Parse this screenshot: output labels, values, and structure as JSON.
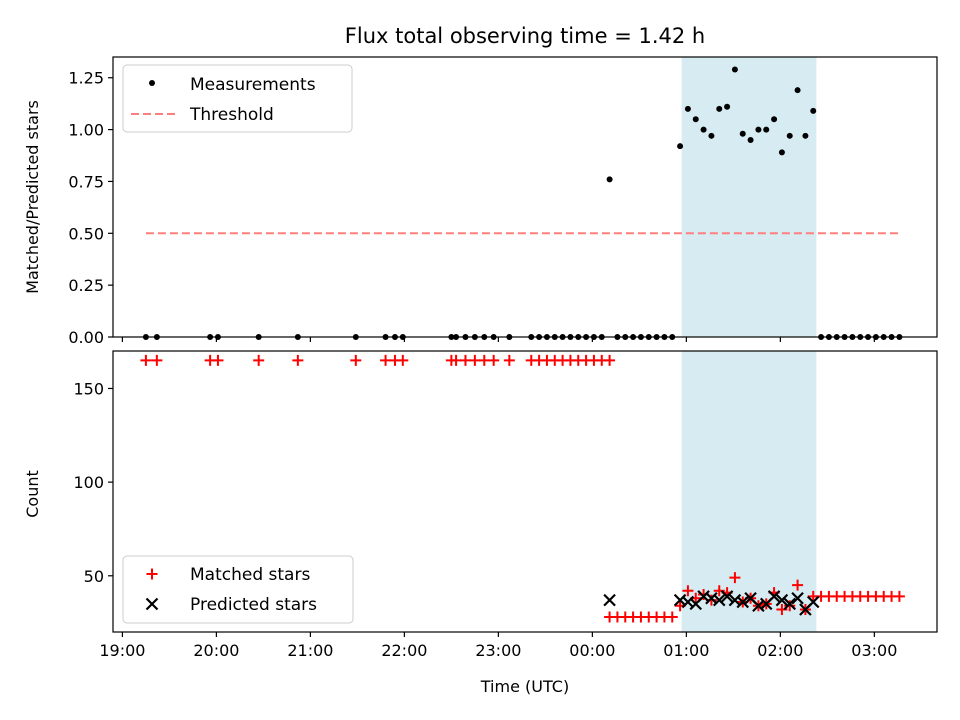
{
  "chart_data": [
    {
      "type": "scatter",
      "title": "Flux total observing time = 1.42 h",
      "xlabel": "",
      "ylabel": "Matched/Predicted stars",
      "xlim": [
        "18:54",
        "03:40"
      ],
      "ylim": [
        0,
        1.35
      ],
      "yticks": [
        "0.00",
        "0.25",
        "0.50",
        "0.75",
        "1.00",
        "1.25"
      ],
      "shaded_region": {
        "x_start": "00:57",
        "x_end": "02:23"
      },
      "legend": {
        "position": "top-left",
        "entries": [
          "Measurements",
          "Threshold"
        ]
      },
      "series": [
        {
          "name": "Measurements",
          "x": [
            "19:15",
            "19:22",
            "19:56",
            "20:01",
            "20:27",
            "20:52",
            "21:29",
            "21:48",
            "21:54",
            "21:59",
            "22:30",
            "22:33",
            "22:39",
            "22:45",
            "22:51",
            "22:57",
            "23:07",
            "23:21",
            "23:26",
            "23:31",
            "23:36",
            "23:41",
            "23:46",
            "23:51",
            "23:56",
            "00:01",
            "00:06",
            "00:11",
            "00:16",
            "00:21",
            "00:26",
            "00:31",
            "00:36",
            "00:41",
            "00:46",
            "00:51",
            "00:56",
            "01:01",
            "01:06",
            "01:11",
            "01:16",
            "01:21",
            "01:26",
            "01:31",
            "01:36",
            "01:41",
            "01:46",
            "01:51",
            "01:56",
            "02:01",
            "02:06",
            "02:11",
            "02:16",
            "02:21",
            "02:26",
            "02:31",
            "02:36",
            "02:41",
            "02:46",
            "02:51",
            "02:56",
            "03:01",
            "03:06",
            "03:11",
            "03:16"
          ],
          "y": [
            0,
            0,
            0,
            0,
            0,
            0,
            0,
            0,
            0,
            0,
            0,
            0,
            0,
            0,
            0,
            0,
            0,
            0,
            0,
            0,
            0,
            0,
            0,
            0,
            0,
            0,
            0,
            0.76,
            0,
            0,
            0,
            0,
            0,
            0,
            0,
            0,
            0.92,
            1.1,
            1.05,
            1.0,
            0.97,
            1.1,
            1.11,
            1.29,
            0.98,
            0.95,
            1.0,
            1.0,
            1.05,
            0.89,
            0.97,
            1.19,
            0.97,
            1.09,
            0,
            0,
            0,
            0,
            0,
            0,
            0,
            0,
            0,
            0,
            0
          ]
        },
        {
          "name": "Threshold",
          "x": [
            "19:15",
            "03:16"
          ],
          "y": [
            0.5,
            0.5
          ]
        }
      ]
    },
    {
      "type": "scatter",
      "title": "",
      "xlabel": "Time (UTC)",
      "ylabel": "Count",
      "xlim": [
        "18:54",
        "03:40"
      ],
      "ylim": [
        20,
        170
      ],
      "yticks": [
        "50",
        "100",
        "150"
      ],
      "xticks": [
        "19:00",
        "20:00",
        "21:00",
        "22:00",
        "23:00",
        "00:00",
        "01:00",
        "02:00",
        "03:00"
      ],
      "shaded_region": {
        "x_start": "00:57",
        "x_end": "02:23"
      },
      "legend": {
        "position": "bottom-left",
        "entries": [
          "Matched stars",
          "Predicted stars"
        ]
      },
      "series": [
        {
          "name": "Matched stars",
          "x": [
            "19:15",
            "19:22",
            "19:56",
            "20:01",
            "20:27",
            "20:52",
            "21:29",
            "21:48",
            "21:54",
            "21:59",
            "22:30",
            "22:33",
            "22:39",
            "22:45",
            "22:51",
            "22:57",
            "23:07",
            "23:21",
            "23:26",
            "23:31",
            "23:36",
            "23:41",
            "23:46",
            "23:51",
            "23:56",
            "00:01",
            "00:06",
            "00:11",
            "00:11",
            "00:16",
            "00:21",
            "00:26",
            "00:31",
            "00:36",
            "00:41",
            "00:46",
            "00:51",
            "00:56",
            "01:01",
            "01:06",
            "01:11",
            "01:16",
            "01:21",
            "01:26",
            "01:31",
            "01:36",
            "01:41",
            "01:46",
            "01:51",
            "01:56",
            "02:01",
            "02:06",
            "02:11",
            "02:16",
            "02:21",
            "02:26",
            "02:31",
            "02:36",
            "02:41",
            "02:46",
            "02:51",
            "02:56",
            "03:01",
            "03:06",
            "03:11",
            "03:16"
          ],
          "y": [
            165,
            165,
            165,
            165,
            165,
            165,
            165,
            165,
            165,
            165,
            165,
            165,
            165,
            165,
            165,
            165,
            165,
            165,
            165,
            165,
            165,
            165,
            165,
            165,
            165,
            165,
            165,
            165,
            28,
            28,
            28,
            28,
            28,
            28,
            28,
            28,
            28,
            34,
            42,
            38,
            40,
            37,
            42,
            41,
            49,
            36,
            38,
            34,
            35,
            41,
            32,
            34,
            45,
            32,
            39,
            39,
            39,
            39,
            39,
            39,
            39,
            39,
            39,
            39,
            39,
            39
          ]
        },
        {
          "name": "Predicted stars",
          "x": [
            "00:11",
            "00:56",
            "01:01",
            "01:06",
            "01:11",
            "01:16",
            "01:21",
            "01:26",
            "01:31",
            "01:36",
            "01:41",
            "01:46",
            "01:51",
            "01:56",
            "02:01",
            "02:06",
            "02:11",
            "02:16",
            "02:21"
          ],
          "y": [
            37,
            37,
            36,
            35,
            39,
            38,
            37,
            39,
            37,
            36,
            38,
            34,
            35,
            39,
            37,
            35,
            38,
            32,
            36
          ]
        }
      ]
    }
  ]
}
